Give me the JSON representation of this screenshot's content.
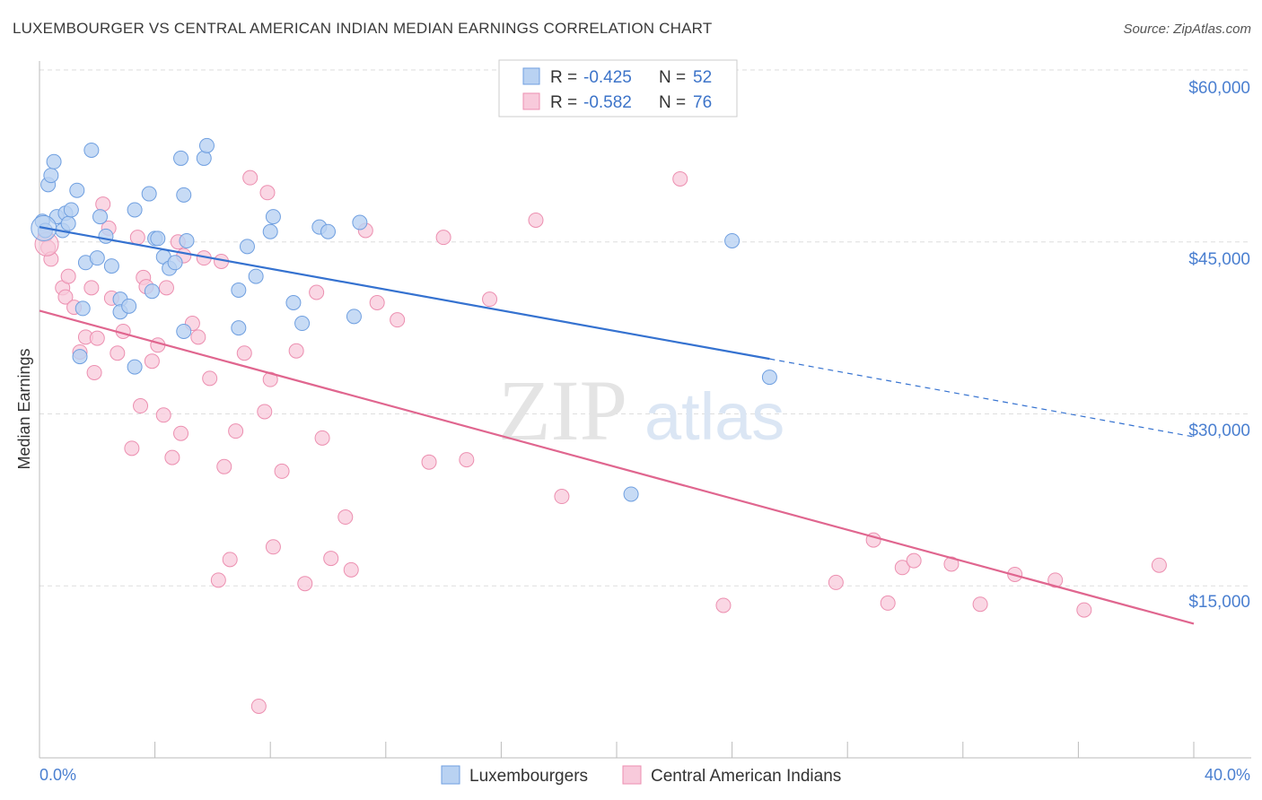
{
  "title": "LUXEMBOURGER VS CENTRAL AMERICAN INDIAN MEDIAN EARNINGS CORRELATION CHART",
  "source": "Source: ZipAtlas.com",
  "watermark": {
    "zip": "ZIP",
    "atlas": "atlas"
  },
  "colors": {
    "blue_fill": "#b9d2f2",
    "blue_stroke": "#6f9fe0",
    "blue_line": "#3572d0",
    "pink_fill": "#f8cadb",
    "pink_stroke": "#ec8fb0",
    "pink_line": "#e0668f",
    "grid": "#dddddd",
    "axis_label": "#4a7fd0"
  },
  "legend": {
    "rows": [
      {
        "r_label": "R =",
        "r_value": "-0.425",
        "n_label": "N =",
        "n_value": "52"
      },
      {
        "r_label": "R =",
        "r_value": "-0.582",
        "n_label": "N =",
        "n_value": "76"
      }
    ]
  },
  "bottom_legend": [
    "Luxembourgers",
    "Central American Indians"
  ],
  "chart_data": {
    "type": "scatter",
    "ylabel": "Median Earnings",
    "x_tick_labels": [
      "0.0%",
      "40.0%"
    ],
    "y_tick_labels": [
      "$60,000",
      "$45,000",
      "$30,000",
      "$15,000"
    ],
    "y_ticks": [
      60000,
      45000,
      30000,
      15000
    ],
    "xlim": [
      0,
      40
    ],
    "ylim": [
      0,
      62500
    ],
    "grid": true,
    "legend_position": "top-center",
    "series": [
      {
        "name": "Luxembourgers",
        "r": -0.425,
        "n": 52,
        "trend": {
          "x0": 0,
          "y0": 46300,
          "x1_solid": 25.3,
          "y1_solid": 34800,
          "x1_dashed": 40,
          "y1_dashed": 28000
        },
        "points": [
          [
            0.1,
            46800
          ],
          [
            0.2,
            46000
          ],
          [
            0.3,
            50000
          ],
          [
            0.4,
            50800
          ],
          [
            0.5,
            52000
          ],
          [
            0.6,
            47200
          ],
          [
            0.8,
            46000
          ],
          [
            0.9,
            47500
          ],
          [
            1.0,
            46600
          ],
          [
            1.1,
            47800
          ],
          [
            1.3,
            49500
          ],
          [
            1.4,
            35000
          ],
          [
            1.5,
            39200
          ],
          [
            1.6,
            43200
          ],
          [
            1.8,
            53000
          ],
          [
            2.0,
            43600
          ],
          [
            2.1,
            47200
          ],
          [
            2.3,
            45500
          ],
          [
            2.5,
            42900
          ],
          [
            2.8,
            40000
          ],
          [
            2.8,
            38900
          ],
          [
            3.1,
            39400
          ],
          [
            3.3,
            34100
          ],
          [
            3.3,
            47800
          ],
          [
            3.8,
            49200
          ],
          [
            3.9,
            40700
          ],
          [
            4.0,
            45300
          ],
          [
            4.3,
            43700
          ],
          [
            4.5,
            42700
          ],
          [
            4.7,
            43200
          ],
          [
            4.9,
            52300
          ],
          [
            5.0,
            49100
          ],
          [
            5.1,
            45100
          ],
          [
            5.7,
            52300
          ],
          [
            5.8,
            53400
          ],
          [
            6.9,
            37500
          ],
          [
            6.9,
            40800
          ],
          [
            7.2,
            44600
          ],
          [
            7.5,
            42000
          ],
          [
            8.0,
            45900
          ],
          [
            8.1,
            47200
          ],
          [
            8.8,
            39700
          ],
          [
            9.1,
            37900
          ],
          [
            9.7,
            46300
          ],
          [
            10.0,
            45900
          ],
          [
            10.9,
            38500
          ],
          [
            11.1,
            46700
          ],
          [
            4.1,
            45300
          ],
          [
            5.0,
            37200
          ],
          [
            24.0,
            45100
          ],
          [
            25.3,
            33200
          ],
          [
            20.5,
            23000
          ]
        ]
      },
      {
        "name": "Central American Indians",
        "r": -0.582,
        "n": 76,
        "trend": {
          "x0": 0,
          "y0": 39000,
          "x1": 40,
          "y1": 11700
        },
        "points": [
          [
            0.2,
            45600
          ],
          [
            0.3,
            44500
          ],
          [
            0.4,
            43500
          ],
          [
            0.8,
            41000
          ],
          [
            0.9,
            40200
          ],
          [
            1.0,
            42000
          ],
          [
            1.2,
            39300
          ],
          [
            1.4,
            35400
          ],
          [
            1.6,
            36700
          ],
          [
            1.8,
            41000
          ],
          [
            1.9,
            33600
          ],
          [
            2.0,
            36600
          ],
          [
            2.2,
            48300
          ],
          [
            2.4,
            46200
          ],
          [
            2.5,
            40100
          ],
          [
            2.7,
            35300
          ],
          [
            2.9,
            37200
          ],
          [
            3.2,
            27000
          ],
          [
            3.4,
            45400
          ],
          [
            3.5,
            30700
          ],
          [
            3.6,
            41900
          ],
          [
            3.7,
            41100
          ],
          [
            3.9,
            34600
          ],
          [
            4.1,
            36000
          ],
          [
            4.3,
            29900
          ],
          [
            4.4,
            41000
          ],
          [
            4.6,
            26200
          ],
          [
            4.8,
            45000
          ],
          [
            4.9,
            28300
          ],
          [
            5.0,
            43800
          ],
          [
            5.3,
            37900
          ],
          [
            5.5,
            36700
          ],
          [
            5.7,
            43600
          ],
          [
            5.9,
            33100
          ],
          [
            6.2,
            15500
          ],
          [
            6.3,
            43300
          ],
          [
            6.4,
            25400
          ],
          [
            6.6,
            17300
          ],
          [
            6.8,
            28500
          ],
          [
            7.1,
            35300
          ],
          [
            7.3,
            50600
          ],
          [
            7.6,
            4500
          ],
          [
            7.8,
            30200
          ],
          [
            7.9,
            49300
          ],
          [
            8.0,
            33000
          ],
          [
            8.1,
            18400
          ],
          [
            8.4,
            25000
          ],
          [
            8.9,
            35500
          ],
          [
            9.2,
            15200
          ],
          [
            9.6,
            40600
          ],
          [
            9.8,
            27900
          ],
          [
            10.1,
            17400
          ],
          [
            10.6,
            21000
          ],
          [
            10.8,
            16400
          ],
          [
            11.3,
            46000
          ],
          [
            11.7,
            39700
          ],
          [
            12.4,
            38200
          ],
          [
            13.5,
            25800
          ],
          [
            14.0,
            45400
          ],
          [
            14.8,
            26000
          ],
          [
            15.6,
            40000
          ],
          [
            17.2,
            46900
          ],
          [
            18.1,
            22800
          ],
          [
            22.2,
            50500
          ],
          [
            23.7,
            13300
          ],
          [
            27.6,
            15300
          ],
          [
            28.9,
            19000
          ],
          [
            29.4,
            13500
          ],
          [
            29.9,
            16600
          ],
          [
            30.3,
            17200
          ],
          [
            31.6,
            16900
          ],
          [
            32.6,
            13400
          ],
          [
            33.8,
            16000
          ],
          [
            35.2,
            15500
          ],
          [
            38.8,
            16800
          ],
          [
            36.2,
            12900
          ]
        ]
      }
    ]
  }
}
